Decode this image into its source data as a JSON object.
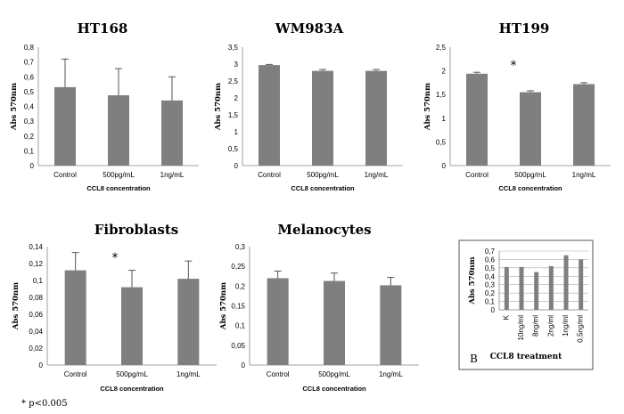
{
  "footnote": "* p<0.005",
  "chart_data": [
    {
      "id": "ht168",
      "type": "bar",
      "title": "HT168",
      "categories": [
        "Control",
        "500pg/mL",
        "1ng/mL"
      ],
      "values": [
        0.53,
        0.475,
        0.44
      ],
      "errors": [
        0.19,
        0.18,
        0.16
      ],
      "ylim": [
        0,
        0.8
      ],
      "yticks": [
        "0",
        "0,1",
        "0,2",
        "0,3",
        "0,4",
        "0,5",
        "0,6",
        "0,7",
        "0,8"
      ],
      "xlabel": "CCL8 concentration",
      "ylabel": "Abs 570nm",
      "significance": []
    },
    {
      "id": "wm983a",
      "type": "bar",
      "title": "WM983A",
      "categories": [
        "Control",
        "500pg/mL",
        "1ng/mL"
      ],
      "values": [
        2.97,
        2.8,
        2.8
      ],
      "errors": [
        0.02,
        0.04,
        0.04
      ],
      "ylim": [
        0,
        3.5
      ],
      "yticks": [
        "0",
        "0,5",
        "1",
        "1,5",
        "2",
        "2,5",
        "3",
        "3,5"
      ],
      "xlabel": "CCL8 concentration",
      "ylabel": "Abs 570nm",
      "significance": []
    },
    {
      "id": "ht199",
      "type": "bar",
      "title": "HT199",
      "categories": [
        "Control",
        "500pg/mL",
        "1ng/mL"
      ],
      "values": [
        1.94,
        1.55,
        1.72
      ],
      "errors": [
        0.03,
        0.03,
        0.03
      ],
      "ylim": [
        0,
        2.5
      ],
      "yticks": [
        "0",
        "0,5",
        "1",
        "1,5",
        "2",
        "2,5"
      ],
      "xlabel": "CCL8 concentration",
      "ylabel": "Abs 570nm",
      "significance": [
        "500pg/mL"
      ]
    },
    {
      "id": "fibroblasts",
      "type": "bar",
      "title": "Fibroblasts",
      "categories": [
        "Control",
        "500pg/mL",
        "1ng/mL"
      ],
      "values": [
        0.112,
        0.092,
        0.102
      ],
      "errors": [
        0.021,
        0.02,
        0.021
      ],
      "ylim": [
        0,
        0.14
      ],
      "yticks": [
        "0",
        "0,02",
        "0,04",
        "0,06",
        "0,08",
        "0,1",
        "0,12",
        "0,14"
      ],
      "xlabel": "CCL8 concentration",
      "ylabel": "Abs 570nm",
      "significance": [
        "500pg/mL"
      ]
    },
    {
      "id": "melanocytes",
      "type": "bar",
      "title": "Melanocytes",
      "categories": [
        "Control",
        "500pg/mL",
        "1ng/mL"
      ],
      "values": [
        0.22,
        0.213,
        0.202
      ],
      "errors": [
        0.018,
        0.02,
        0.02
      ],
      "ylim": [
        0,
        0.3
      ],
      "yticks": [
        "0",
        "0,05",
        "0,1",
        "0,15",
        "0,2",
        "0,25",
        "0,3"
      ],
      "xlabel": "CCL8 concentration",
      "ylabel": "Abs 570nm",
      "significance": []
    },
    {
      "id": "inset",
      "type": "bar",
      "title": "",
      "panel_label": "B",
      "categories": [
        "K",
        "10ng/ml",
        "8ng/ml",
        "2ng/ml",
        "1ng/ml",
        "0,5ng/ml"
      ],
      "values": [
        0.51,
        0.51,
        0.45,
        0.52,
        0.65,
        0.6
      ],
      "errors": [],
      "ylim": [
        0,
        0.7
      ],
      "yticks": [
        "0",
        "0,1",
        "0,2",
        "0,3",
        "0,4",
        "0,5",
        "0,6",
        "0,7"
      ],
      "xlabel": "CCL8 treatment",
      "ylabel": "Abs 570nm",
      "significance": []
    }
  ]
}
